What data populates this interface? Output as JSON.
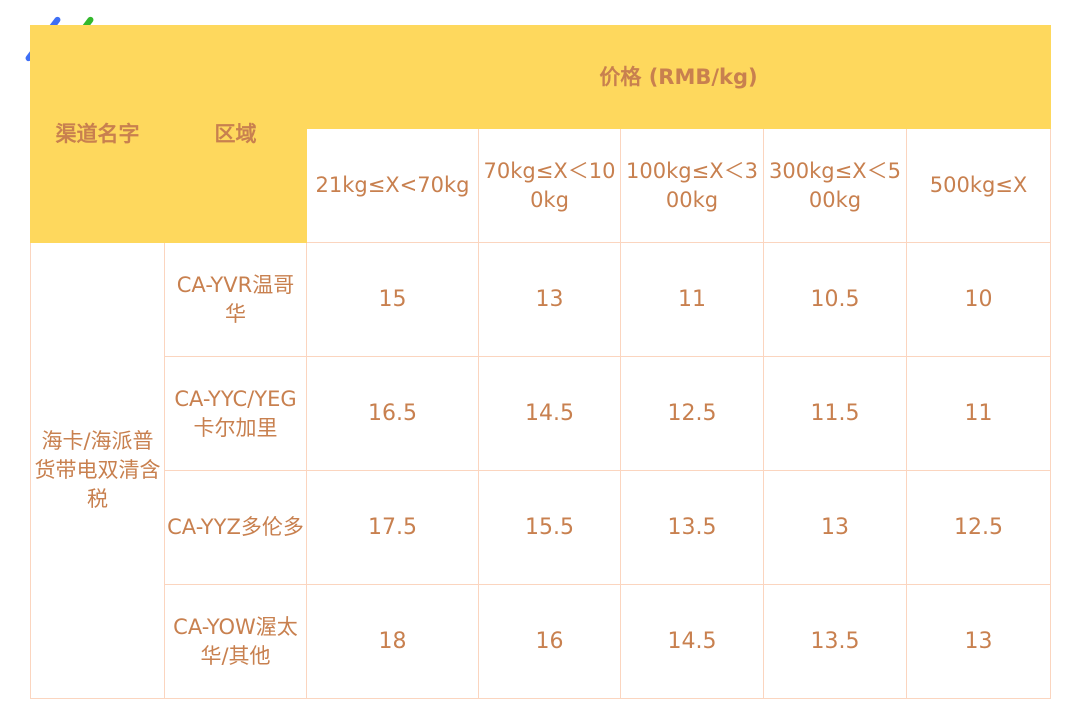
{
  "colors": {
    "header_bg": "#fed85d",
    "text": "#c8804f",
    "border": "#fbd5bf",
    "deco_blue": "#3e6ff5",
    "deco_green": "#33b82c"
  },
  "header": {
    "channel": "渠道名字",
    "region": "区域",
    "price": "价格 (RMB/kg)",
    "tiers": [
      "21kg≤X<70kg",
      "70kg≤X＜100kg",
      "100kg≤X＜300kg",
      "300kg≤X＜500kg",
      "500kg≤X"
    ]
  },
  "channel": "海卡/海派普货带电双清含税",
  "rows": [
    {
      "region": "CA-YVR温哥华",
      "prices": [
        "15",
        "13",
        "11",
        "10.5",
        "10"
      ]
    },
    {
      "region": "CA-YYC/YEG卡尔加里",
      "prices": [
        "16.5",
        "14.5",
        "12.5",
        "11.5",
        "11"
      ]
    },
    {
      "region": "CA-YYZ多伦多",
      "prices": [
        "17.5",
        "15.5",
        "13.5",
        "13",
        "12.5"
      ]
    },
    {
      "region": "CA-YOW渥太华/其他",
      "prices": [
        "18",
        "16",
        "14.5",
        "13.5",
        "13"
      ]
    }
  ]
}
